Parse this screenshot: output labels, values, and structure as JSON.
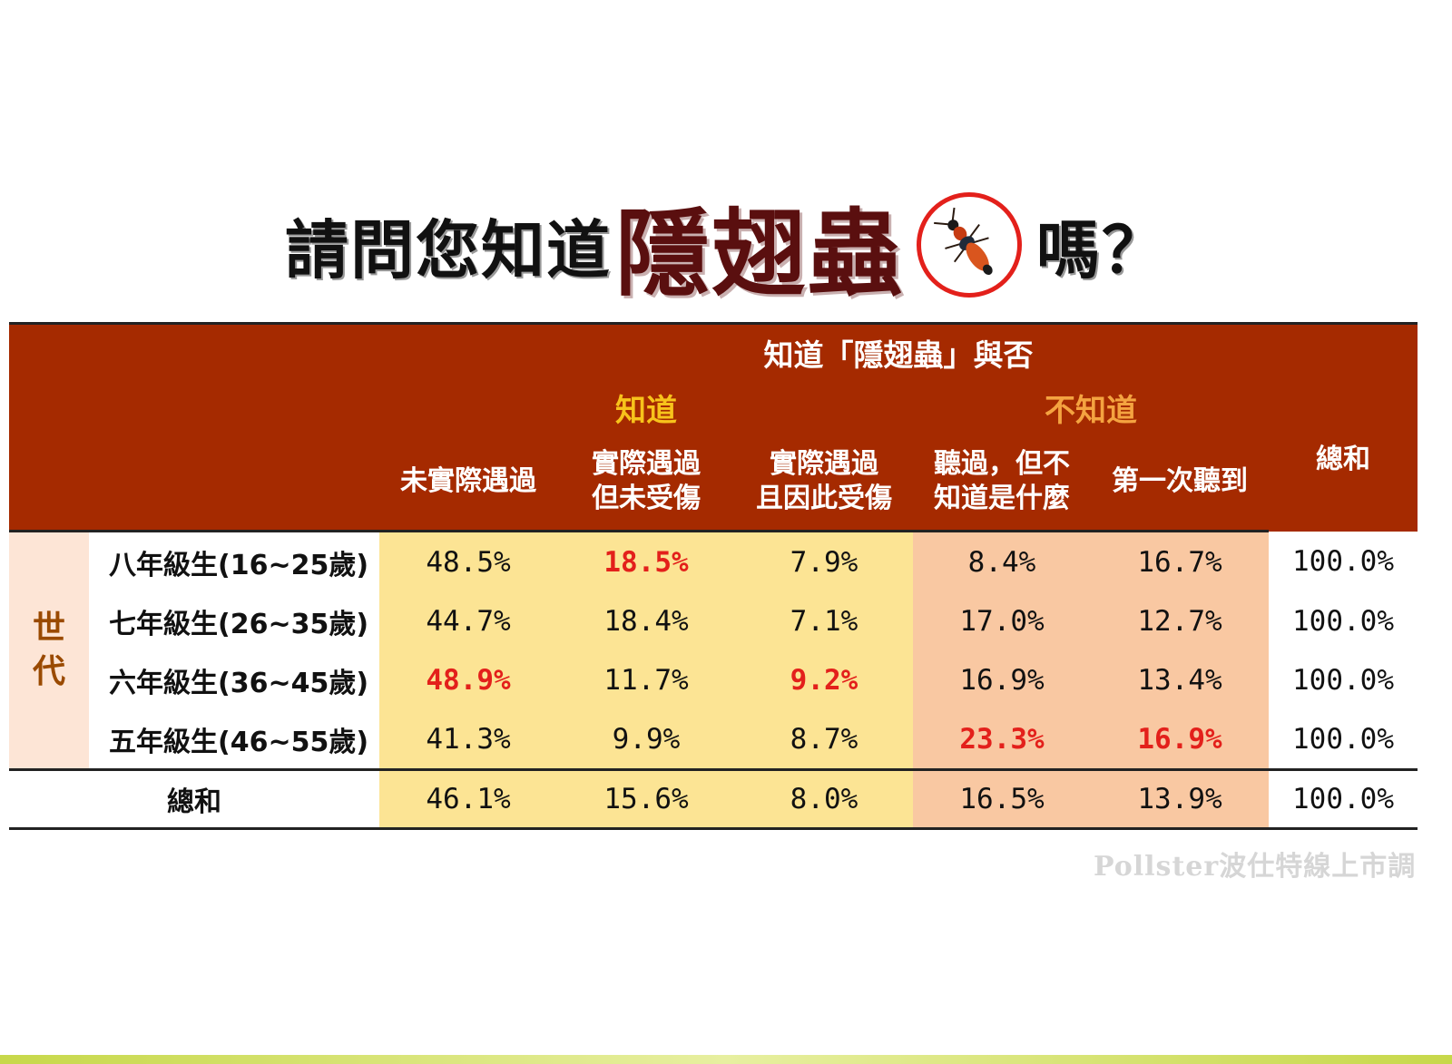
{
  "title": {
    "prefix": "請問您知道",
    "highlight": "隱翅蟲",
    "suffix": "嗎？"
  },
  "table": {
    "header": "知道「隱翅蟲」與否",
    "group_known": "知道",
    "group_unknown": "不知道",
    "total_header": "總和",
    "columns": [
      "未實際遇過",
      "實際遇過\n但未受傷",
      "實際遇過\n且因此受傷",
      "聽過，但不\n知道是什麼",
      "第一次聽到"
    ],
    "side_label": "世\n代",
    "rows": [
      {
        "label": "八年級生(16~25歲)",
        "values": [
          "48.5%",
          "18.5%",
          "7.9%",
          "8.4%",
          "16.7%"
        ],
        "total": "100.0%"
      },
      {
        "label": "七年級生(26~35歲)",
        "values": [
          "44.7%",
          "18.4%",
          "7.1%",
          "17.0%",
          "12.7%"
        ],
        "total": "100.0%"
      },
      {
        "label": "六年級生(36~45歲)",
        "values": [
          "48.9%",
          "11.7%",
          "9.2%",
          "16.9%",
          "13.4%"
        ],
        "total": "100.0%"
      },
      {
        "label": "五年級生(46~55歲)",
        "values": [
          "41.3%",
          "9.9%",
          "8.7%",
          "23.3%",
          "16.9%"
        ],
        "total": "100.0%"
      }
    ],
    "total_row": {
      "label": "總和",
      "values": [
        "46.1%",
        "15.6%",
        "8.0%",
        "16.5%",
        "13.9%"
      ],
      "total": "100.0%"
    }
  },
  "highlight_color": "#e3201b",
  "source": "Pollster波仕特線上市調",
  "chart_data": {
    "type": "table",
    "title": "請問您知道隱翅蟲嗎？",
    "column_groups": [
      {
        "name": "知道",
        "columns": [
          "未實際遇過",
          "實際遇過但未受傷",
          "實際遇過且因此受傷"
        ]
      },
      {
        "name": "不知道",
        "columns": [
          "聽過，但不知道是什麼",
          "第一次聽到"
        ]
      }
    ],
    "categories": [
      "八年級生(16~25歲)",
      "七年級生(26~35歲)",
      "六年級生(36~45歲)",
      "五年級生(46~55歲)",
      "總和"
    ],
    "series": [
      {
        "name": "未實際遇過",
        "values": [
          48.5,
          44.7,
          48.9,
          41.3,
          46.1
        ]
      },
      {
        "name": "實際遇過但未受傷",
        "values": [
          18.5,
          18.4,
          11.7,
          9.9,
          15.6
        ]
      },
      {
        "name": "實際遇過且因此受傷",
        "values": [
          7.9,
          7.1,
          9.2,
          8.7,
          8.0
        ]
      },
      {
        "name": "聽過，但不知道是什麼",
        "values": [
          8.4,
          17.0,
          16.9,
          23.3,
          16.5
        ]
      },
      {
        "name": "第一次聽到",
        "values": [
          16.7,
          12.7,
          13.4,
          16.9,
          13.9
        ]
      },
      {
        "name": "總和",
        "values": [
          100.0,
          100.0,
          100.0,
          100.0,
          100.0
        ]
      }
    ],
    "highlighted_cells": [
      {
        "row": "八年級生(16~25歲)",
        "column": "實際遇過但未受傷"
      },
      {
        "row": "六年級生(36~45歲)",
        "column": "未實際遇過"
      },
      {
        "row": "六年級生(36~45歲)",
        "column": "實際遇過且因此受傷"
      },
      {
        "row": "五年級生(46~55歲)",
        "column": "聽過，但不知道是什麼"
      },
      {
        "row": "五年級生(46~55歲)",
        "column": "第一次聽到"
      }
    ]
  }
}
